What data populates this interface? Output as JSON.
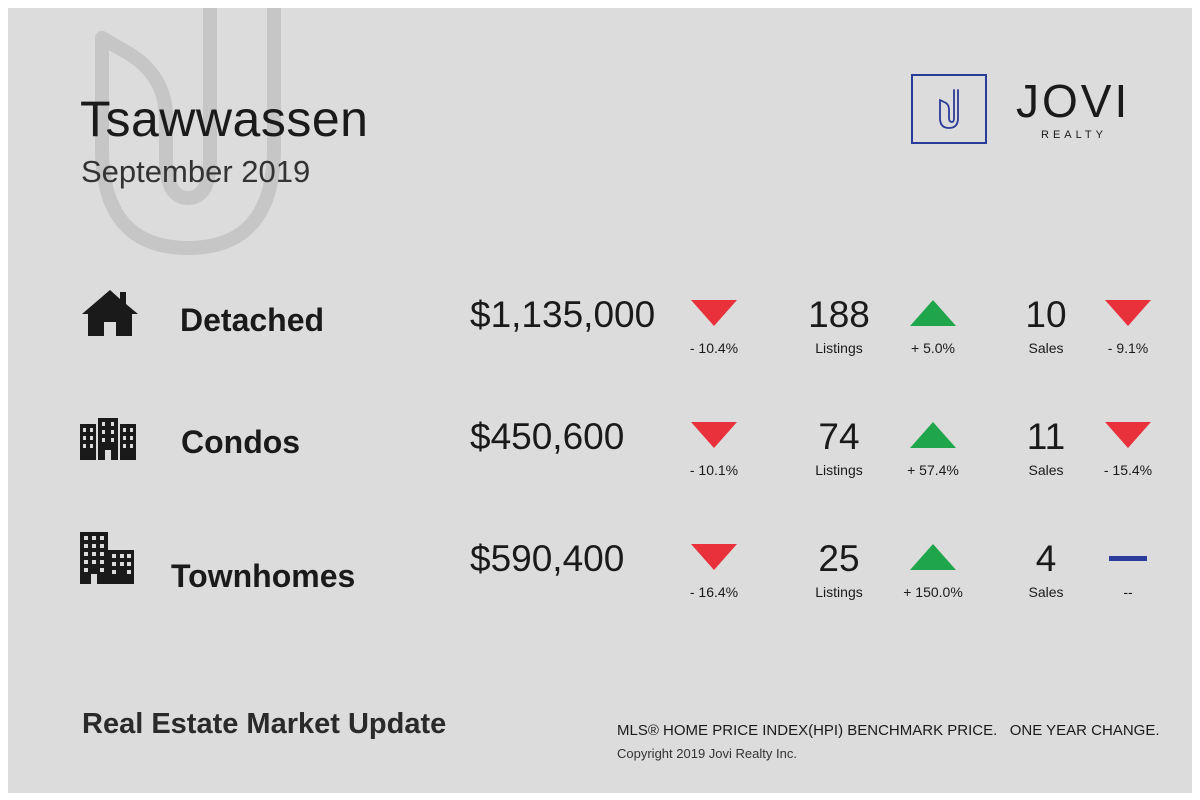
{
  "header": {
    "title": "Tsawwassen",
    "subtitle": "September 2019"
  },
  "brand": {
    "name": "JOVI",
    "tagline": "REALTY",
    "logo_letter": "J",
    "accent_color": "#2a3b9a"
  },
  "rows": [
    {
      "category": "Detached",
      "icon": "house-icon",
      "price": "$1,135,000",
      "price_change": "- 10.4%",
      "price_trend": "down",
      "listings": "188",
      "listings_label": "Listings",
      "listings_change": "+ 5.0%",
      "listings_trend": "up",
      "sales": "10",
      "sales_label": "Sales",
      "sales_change": "- 9.1%",
      "sales_trend": "down"
    },
    {
      "category": "Condos",
      "icon": "condo-building-icon",
      "price": "$450,600",
      "price_change": "- 10.1%",
      "price_trend": "down",
      "listings": "74",
      "listings_label": "Listings",
      "listings_change": "+ 57.4%",
      "listings_trend": "up",
      "sales": "11",
      "sales_label": "Sales",
      "sales_change": "- 15.4%",
      "sales_trend": "down"
    },
    {
      "category": "Townhomes",
      "icon": "townhome-building-icon",
      "price": "$590,400",
      "price_change": "- 16.4%",
      "price_trend": "down",
      "listings": "25",
      "listings_label": "Listings",
      "listings_change": "+ 150.0%",
      "listings_trend": "up",
      "sales": "4",
      "sales_label": "Sales",
      "sales_change": "--",
      "sales_trend": "flat"
    }
  ],
  "colors": {
    "down": "#e8313a",
    "up": "#1fa54a",
    "flat": "#2a3b9a",
    "background": "#dcdcdc"
  },
  "footer": {
    "title": "Real Estate Market Update",
    "note": "MLS® HOME PRICE INDEX(HPI) BENCHMARK PRICE.   ONE YEAR CHANGE.",
    "copyright": "Copyright 2019 Jovi Realty Inc."
  }
}
